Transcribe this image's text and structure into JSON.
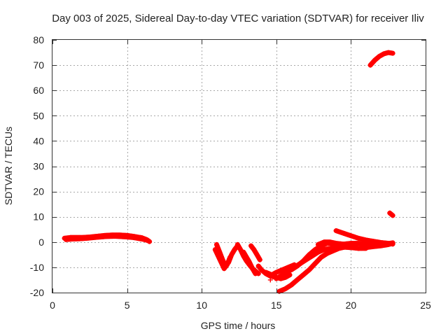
{
  "chart_data": {
    "type": "scatter",
    "title": "Day 003 of 2025, Sidereal Day-to-day VTEC variation (SDTVAR) for receiver Iliv",
    "xlabel": "GPS time / hours",
    "ylabel": "SDTVAR / TECUs",
    "xlim": [
      0,
      25
    ],
    "ylim": [
      -20,
      80
    ],
    "xticks": [
      0,
      5,
      10,
      15,
      20,
      25
    ],
    "yticks": [
      -20,
      -10,
      0,
      10,
      20,
      30,
      40,
      50,
      60,
      70,
      80
    ],
    "grid": true,
    "marker": "+",
    "series": [
      {
        "name": "SDTVAR",
        "color": "#ff0000",
        "tracks": [
          {
            "x": [
              0.8,
              1.2,
              1.6,
              2.0,
              2.5,
              3.0,
              3.5,
              4.0,
              4.5,
              5.0,
              5.5,
              6.0,
              6.3,
              6.5
            ],
            "y": [
              1.5,
              1.8,
              1.8,
              1.8,
              2.0,
              2.3,
              2.6,
              2.8,
              2.8,
              2.6,
              2.2,
              1.7,
              1.0,
              0.2
            ]
          },
          {
            "x": [
              0.9,
              1.3,
              1.8,
              2.3,
              3.0,
              3.6,
              4.2,
              4.8,
              5.4,
              6.0,
              6.4
            ],
            "y": [
              1.0,
              1.2,
              1.3,
              1.5,
              1.9,
              2.2,
              2.3,
              2.1,
              1.8,
              1.2,
              0.6
            ]
          },
          {
            "x": [
              11.0,
              11.2,
              11.4,
              11.6,
              11.8,
              12.0,
              12.2,
              12.4
            ],
            "y": [
              -1.0,
              -4.0,
              -7.0,
              -9.5,
              -8.0,
              -5.0,
              -3.0,
              -1.5
            ]
          },
          {
            "x": [
              10.9,
              11.1,
              11.3,
              11.5,
              11.7,
              11.9
            ],
            "y": [
              -3.0,
              -5.5,
              -8.0,
              -10.5,
              -9.0,
              -6.0
            ]
          },
          {
            "x": [
              12.4,
              12.6,
              12.8,
              13.0,
              13.2,
              13.4,
              13.6,
              13.8
            ],
            "y": [
              -1.0,
              -3.0,
              -5.5,
              -7.5,
              -9.0,
              -10.5,
              -11.5,
              -12.5
            ]
          },
          {
            "x": [
              12.8,
              13.0,
              13.2,
              13.4,
              13.6
            ],
            "y": [
              -4.0,
              -6.0,
              -8.0,
              -10.5,
              -12.5
            ]
          },
          {
            "x": [
              13.3,
              13.5,
              13.7,
              13.9
            ],
            "y": [
              -1.5,
              -3.0,
              -5.0,
              -7.0
            ]
          },
          {
            "x": [
              13.8,
              14.0,
              14.3,
              14.6,
              15.0,
              15.3,
              15.6,
              15.9
            ],
            "y": [
              -9.5,
              -11.0,
              -12.5,
              -13.5,
              -14.0,
              -14.5,
              -14.0,
              -13.0
            ]
          },
          {
            "x": [
              14.3,
              14.7,
              15.0,
              15.4,
              15.8,
              16.2
            ],
            "y": [
              -12.0,
              -13.0,
              -12.0,
              -11.0,
              -10.0,
              -9.0
            ]
          },
          {
            "x": [
              15.0,
              15.4,
              15.8,
              16.2,
              16.6,
              17.0,
              17.4,
              17.8,
              18.2,
              18.6,
              19.0,
              19.5,
              20.0,
              20.5,
              21.0,
              21.5,
              22.0,
              22.5,
              22.8
            ],
            "y": [
              -14.5,
              -13.0,
              -11.5,
              -10.0,
              -8.5,
              -7.0,
              -5.5,
              -4.0,
              -3.0,
              -2.5,
              -2.0,
              -2.0,
              -2.2,
              -2.5,
              -2.2,
              -1.8,
              -1.5,
              -1.0,
              -0.5
            ]
          },
          {
            "x": [
              15.2,
              15.6,
              16.0,
              16.4,
              16.8,
              17.2,
              17.6,
              18.0,
              18.4,
              18.8,
              19.2,
              19.6
            ],
            "y": [
              -19.5,
              -18.5,
              -17.0,
              -15.0,
              -13.0,
              -11.0,
              -8.5,
              -6.0,
              -4.5,
              -3.5,
              -2.5,
              -2.0
            ]
          },
          {
            "x": [
              15.6,
              16.0,
              16.4,
              16.8,
              17.2,
              17.6,
              18.0,
              18.4,
              18.8,
              19.2,
              19.6,
              20.0,
              20.5,
              21.0
            ],
            "y": [
              -12.0,
              -11.0,
              -9.5,
              -7.5,
              -5.0,
              -3.0,
              -1.5,
              -0.5,
              -0.5,
              -1.0,
              -1.5,
              -2.0,
              -2.5,
              -2.5
            ]
          },
          {
            "x": [
              17.8,
              18.2,
              18.6,
              19.0,
              19.5,
              20.0,
              20.5,
              21.0,
              21.5,
              22.0,
              22.5,
              22.8
            ],
            "y": [
              -1.0,
              0.0,
              0.0,
              -0.5,
              -0.8,
              -0.5,
              -0.5,
              -1.0,
              -1.0,
              -0.8,
              -0.6,
              -0.3
            ]
          },
          {
            "x": [
              19.0,
              19.5,
              20.0,
              20.5,
              21.0,
              21.5,
              22.0,
              22.5,
              22.8
            ],
            "y": [
              4.5,
              3.5,
              2.5,
              1.5,
              0.8,
              0.3,
              -0.2,
              -0.5,
              -0.8
            ]
          },
          {
            "x": [
              21.3,
              21.6,
              21.9,
              22.2,
              22.5,
              22.8
            ],
            "y": [
              70.0,
              72.0,
              73.5,
              74.5,
              75.0,
              74.7
            ]
          },
          {
            "x": [
              22.6,
              22.7,
              22.8
            ],
            "y": [
              11.5,
              11.0,
              10.5
            ]
          }
        ],
        "isolated_points": [
          {
            "x": 14.6,
            "y": -15.0
          }
        ]
      }
    ]
  }
}
